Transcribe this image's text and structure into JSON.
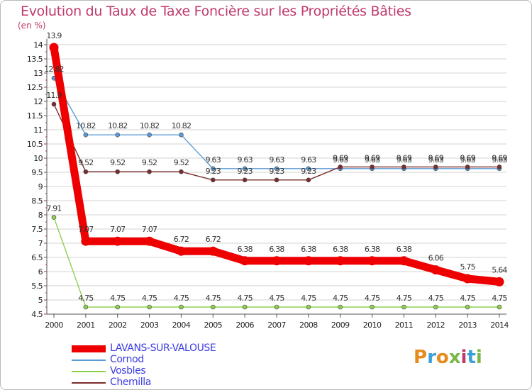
{
  "title": "Evolution du Taux de Taxe Foncière sur les Propriétés Bâties",
  "unit_label": "(en %)",
  "logo_text": "Proxiti",
  "colors": {
    "title": "#c0396d",
    "grid": "#d3d3d3",
    "axis": "#555555",
    "legend_text": "#3d3de0"
  },
  "chart_data": {
    "type": "line",
    "title": "Evolution du Taux de Taxe Foncière sur les Propriétés Bâties",
    "ylabel": "(en %)",
    "xlabel": "",
    "x": [
      "2000",
      "2001",
      "2002",
      "2003",
      "2004",
      "2005",
      "2006",
      "2007",
      "2008",
      "2009",
      "2010",
      "2011",
      "2012",
      "2013",
      "2014"
    ],
    "ylim": [
      4.5,
      14
    ],
    "y_ticks": [
      "4.5",
      "5",
      "5.5",
      "6",
      "6.5",
      "7",
      "7.5",
      "8",
      "8.5",
      "9",
      "9.5",
      "10",
      "10.5",
      "11",
      "11.5",
      "12",
      "12.5",
      "13",
      "13.5",
      "14"
    ],
    "grid": "horizontal",
    "legend_position": "bottom-left",
    "series": [
      {
        "name": "LAVANS-SUR-VALOUSE",
        "color": "#ee0000",
        "values": [
          13.9,
          7.07,
          7.07,
          7.07,
          6.72,
          6.72,
          6.38,
          6.38,
          6.38,
          6.38,
          6.38,
          6.38,
          6.06,
          5.75,
          5.64
        ],
        "labels": [
          "13.9",
          "7.07",
          "7.07",
          "7.07",
          "6.72",
          "6.72",
          "6.38",
          "6.38",
          "6.38",
          "6.38",
          "6.38",
          "6.38",
          "6.06",
          "5.75",
          "5.64"
        ]
      },
      {
        "name": "Cornod",
        "color": "#5b9bd5",
        "values": [
          12.82,
          10.82,
          10.82,
          10.82,
          10.82,
          9.63,
          9.63,
          9.63,
          9.63,
          9.63,
          9.63,
          9.63,
          9.63,
          9.63,
          9.63
        ],
        "labels": [
          "12.82",
          "10.82",
          "10.82",
          "10.82",
          "10.82",
          "9.63",
          "9.63",
          "9.63",
          "9.63",
          "9.63",
          "9.63",
          "9.63",
          "9.63",
          "9.63",
          "9.63"
        ]
      },
      {
        "name": "Vosbles",
        "color": "#8ed14f",
        "values": [
          7.91,
          4.75,
          4.75,
          4.75,
          4.75,
          4.75,
          4.75,
          4.75,
          4.75,
          4.75,
          4.75,
          4.75,
          4.75,
          4.75,
          4.75
        ],
        "labels": [
          "7.91",
          "4.75",
          "4.75",
          "4.75",
          "4.75",
          "4.75",
          "4.75",
          "4.75",
          "4.75",
          "4.75",
          "4.75",
          "4.75",
          "4.75",
          "4.75",
          "4.75"
        ]
      },
      {
        "name": "Chemilla",
        "color": "#7b2c2c",
        "values": [
          11.9,
          9.52,
          9.52,
          9.52,
          9.52,
          9.23,
          9.23,
          9.23,
          9.23,
          9.69,
          9.69,
          9.69,
          9.69,
          9.69,
          9.69
        ],
        "labels": [
          "11.9",
          "9.52",
          "9.52",
          "9.52",
          "9.52",
          "9.23",
          "9.23",
          "9.23",
          "9.23",
          "9.69",
          "9.69",
          "9.69",
          "9.69",
          "9.69",
          "9.69"
        ]
      }
    ]
  }
}
